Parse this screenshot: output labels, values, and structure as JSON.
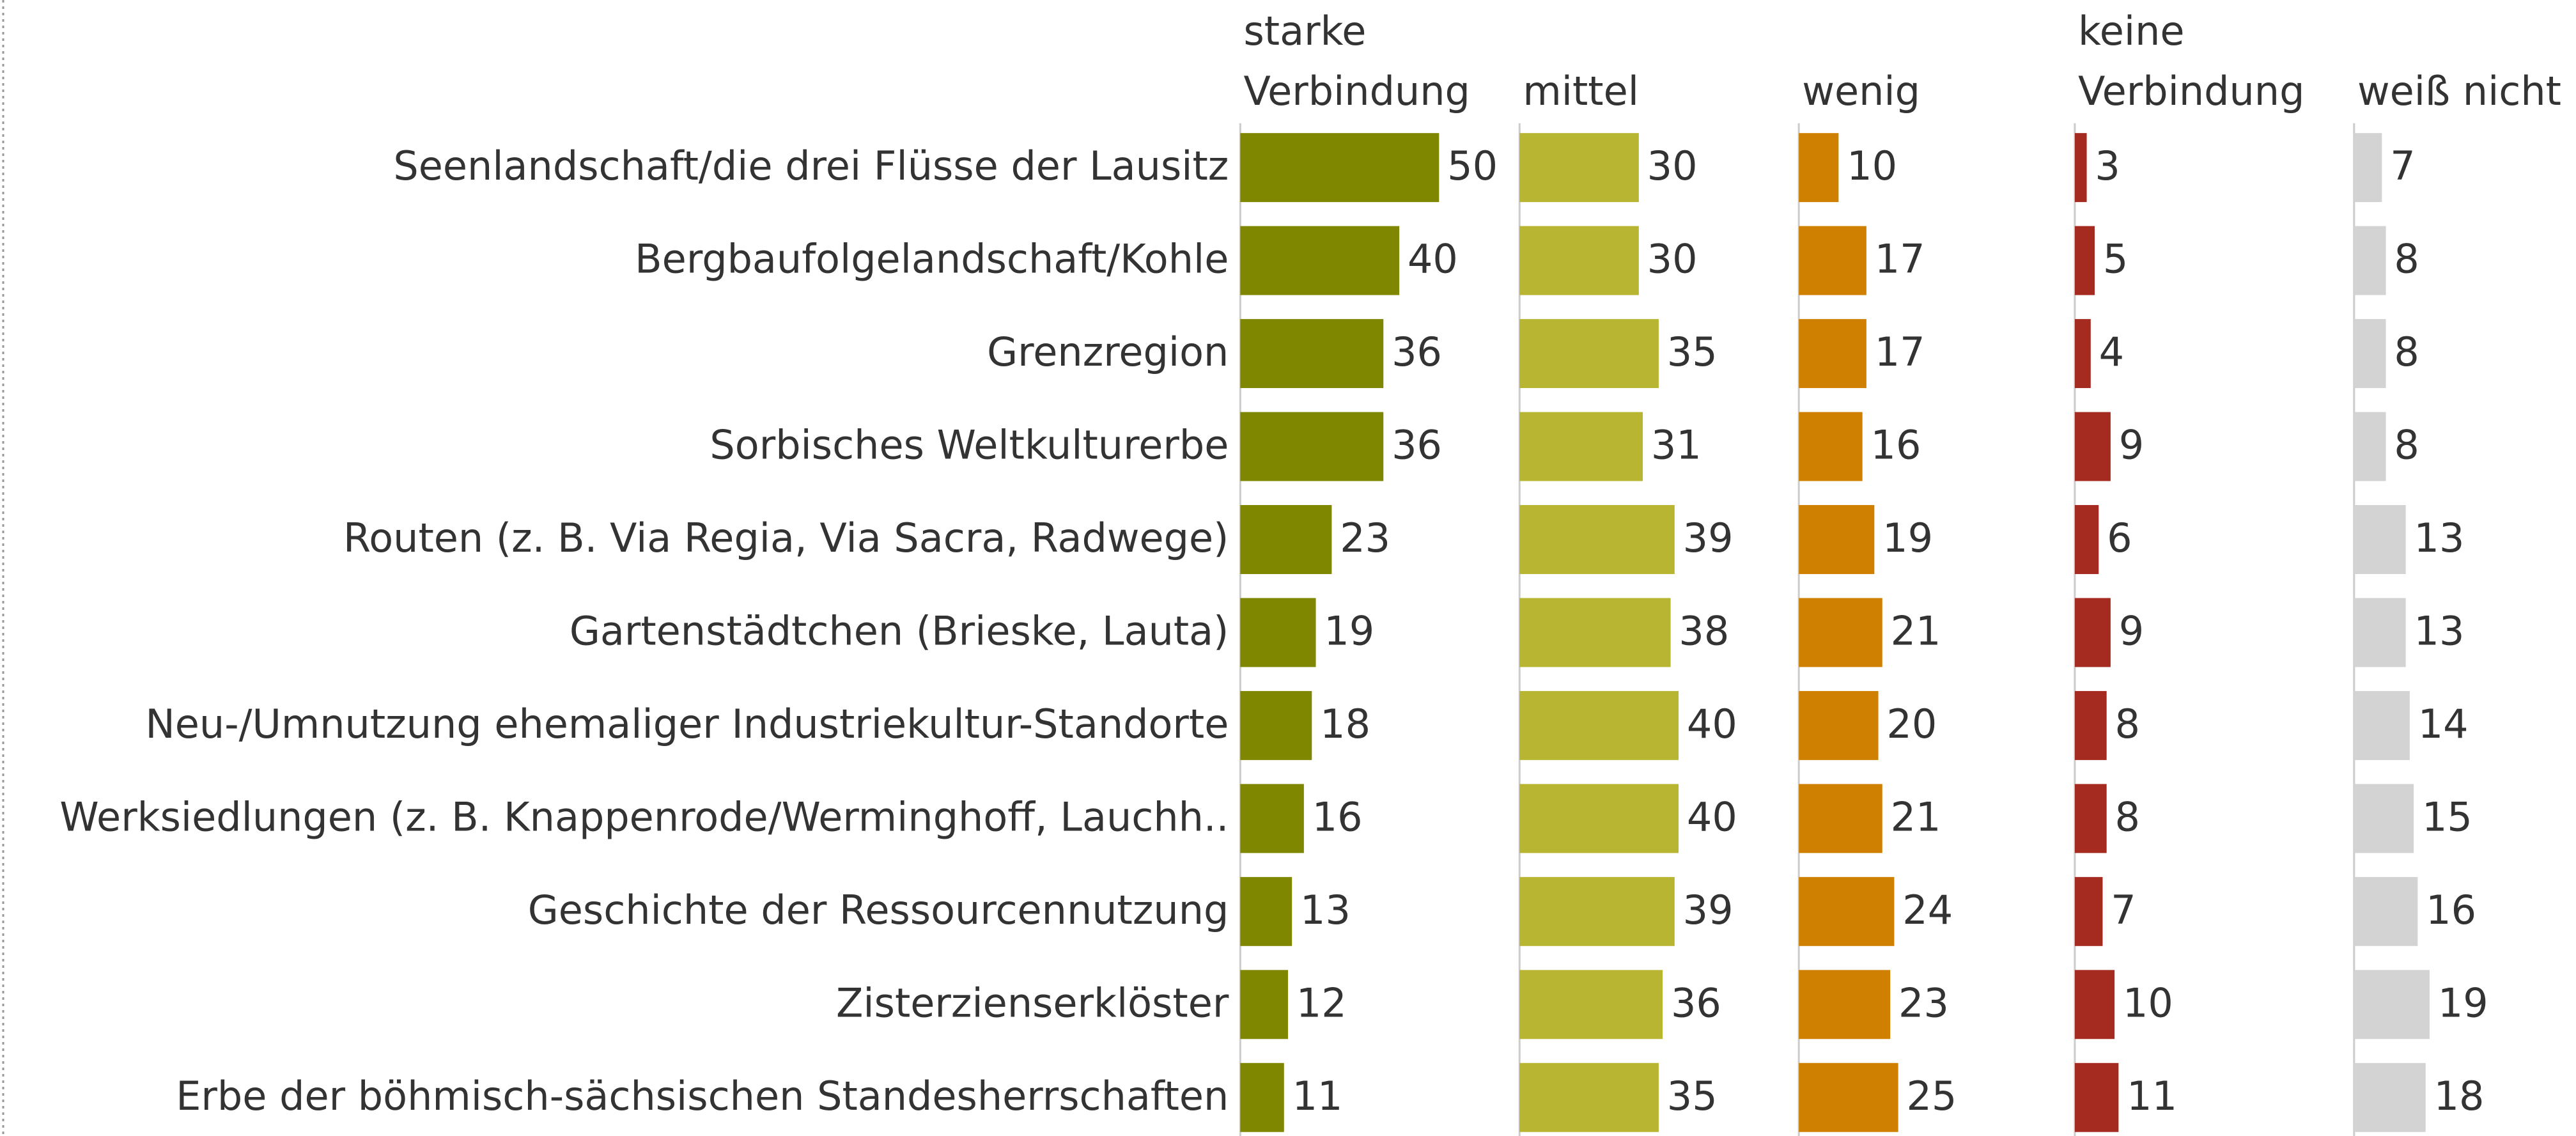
{
  "chart_data": {
    "type": "bar",
    "categories": [
      "Seenlandschaft/die drei Flüsse der Lausitz",
      "Bergbaufolgelandschaft/Kohle",
      "Grenzregion",
      "Sorbisches Weltkulturerbe",
      "Routen (z. B. Via Regia, Via Sacra, Radwege)",
      "Gartenstädtchen (Brieske, Lauta)",
      "Neu-/Umnutzung ehemaliger Industriekultur-Standorte",
      "Werksiedlungen (z. B. Knappenrode/Werminghoff, Lauchh..",
      "Geschichte der Ressourcennutzung",
      "Zisterzienserklöster",
      "Erbe der böhmisch-sächsischen Standesherrschaften"
    ],
    "series": [
      {
        "name": "starke Verbindung",
        "color": "#7f8600",
        "values": [
          50,
          40,
          36,
          36,
          23,
          19,
          18,
          16,
          13,
          12,
          11
        ]
      },
      {
        "name": "mittel",
        "color": "#b8b532",
        "values": [
          30,
          30,
          35,
          31,
          39,
          38,
          40,
          40,
          39,
          36,
          35
        ]
      },
      {
        "name": "wenig",
        "color": "#d08000",
        "values": [
          10,
          17,
          17,
          16,
          19,
          21,
          20,
          21,
          24,
          23,
          25
        ]
      },
      {
        "name": "keine Verbindung",
        "color": "#a52a1f",
        "values": [
          3,
          5,
          4,
          9,
          6,
          9,
          8,
          8,
          7,
          10,
          11
        ]
      },
      {
        "name": "weiß nicht",
        "color": "#d3d3d3",
        "values": [
          7,
          8,
          8,
          8,
          13,
          13,
          14,
          15,
          16,
          19,
          18
        ]
      }
    ]
  }
}
